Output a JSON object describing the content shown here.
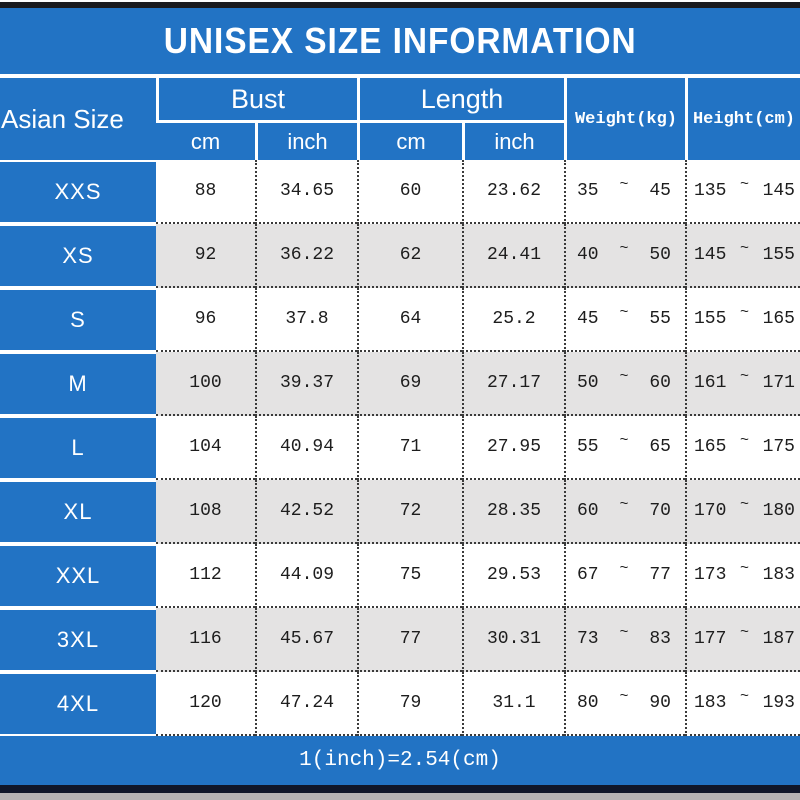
{
  "title": "UNISEX SIZE INFORMATION",
  "footer_note": "1(inch)=2.54(cm)",
  "colors": {
    "brand_blue": "#2273c4",
    "stripe_gray": "#e4e3e3",
    "top_bar_dark": "#1a1a1e",
    "bottom_bar_dark": "#10172a",
    "bottom_strip_gray": "#b5b3b4",
    "text_dark": "#1d1d1d",
    "text_light": "#ffffff"
  },
  "table": {
    "corner_header": "Asian Size",
    "tilde": "~",
    "groups": [
      {
        "label": "Bust",
        "sub": [
          "cm",
          "inch"
        ]
      },
      {
        "label": "Length",
        "sub": [
          "cm",
          "inch"
        ]
      }
    ],
    "single_headers": [
      {
        "label": "Weight(kg)"
      },
      {
        "label": "Height(cm)"
      }
    ],
    "rows": [
      {
        "size": "XXS",
        "bust_cm": "88",
        "bust_inch": "34.65",
        "length_cm": "60",
        "length_inch": "23.62",
        "weight_min": "35",
        "weight_max": "45",
        "height_min": "135",
        "height_max": "145"
      },
      {
        "size": "XS",
        "bust_cm": "92",
        "bust_inch": "36.22",
        "length_cm": "62",
        "length_inch": "24.41",
        "weight_min": "40",
        "weight_max": "50",
        "height_min": "145",
        "height_max": "155"
      },
      {
        "size": "S",
        "bust_cm": "96",
        "bust_inch": "37.8",
        "length_cm": "64",
        "length_inch": "25.2",
        "weight_min": "45",
        "weight_max": "55",
        "height_min": "155",
        "height_max": "165"
      },
      {
        "size": "M",
        "bust_cm": "100",
        "bust_inch": "39.37",
        "length_cm": "69",
        "length_inch": "27.17",
        "weight_min": "50",
        "weight_max": "60",
        "height_min": "161",
        "height_max": "171"
      },
      {
        "size": "L",
        "bust_cm": "104",
        "bust_inch": "40.94",
        "length_cm": "71",
        "length_inch": "27.95",
        "weight_min": "55",
        "weight_max": "65",
        "height_min": "165",
        "height_max": "175"
      },
      {
        "size": "XL",
        "bust_cm": "108",
        "bust_inch": "42.52",
        "length_cm": "72",
        "length_inch": "28.35",
        "weight_min": "60",
        "weight_max": "70",
        "height_min": "170",
        "height_max": "180"
      },
      {
        "size": "XXL",
        "bust_cm": "112",
        "bust_inch": "44.09",
        "length_cm": "75",
        "length_inch": "29.53",
        "weight_min": "67",
        "weight_max": "77",
        "height_min": "173",
        "height_max": "183"
      },
      {
        "size": "3XL",
        "bust_cm": "116",
        "bust_inch": "45.67",
        "length_cm": "77",
        "length_inch": "30.31",
        "weight_min": "73",
        "weight_max": "83",
        "height_min": "177",
        "height_max": "187"
      },
      {
        "size": "4XL",
        "bust_cm": "120",
        "bust_inch": "47.24",
        "length_cm": "79",
        "length_inch": "31.1",
        "weight_min": "80",
        "weight_max": "90",
        "height_min": "183",
        "height_max": "193"
      }
    ]
  },
  "chart_data": {
    "type": "table",
    "title": "UNISEX SIZE INFORMATION",
    "columns": [
      "Asian Size",
      "Bust cm",
      "Bust inch",
      "Length cm",
      "Length inch",
      "Weight(kg)",
      "Height(cm)"
    ],
    "rows": [
      [
        "XXS",
        88,
        34.65,
        60,
        23.62,
        "35~45",
        "135~145"
      ],
      [
        "XS",
        92,
        36.22,
        62,
        24.41,
        "40~50",
        "145~155"
      ],
      [
        "S",
        96,
        37.8,
        64,
        25.2,
        "45~55",
        "155~165"
      ],
      [
        "M",
        100,
        39.37,
        69,
        27.17,
        "50~60",
        "161~171"
      ],
      [
        "L",
        104,
        40.94,
        71,
        27.95,
        "55~65",
        "165~175"
      ],
      [
        "XL",
        108,
        42.52,
        72,
        28.35,
        "60~70",
        "170~180"
      ],
      [
        "XXL",
        112,
        44.09,
        75,
        29.53,
        "67~77",
        "173~183"
      ],
      [
        "3XL",
        116,
        45.67,
        77,
        30.31,
        "73~83",
        "177~187"
      ],
      [
        "4XL",
        120,
        47.24,
        79,
        31.1,
        "80~90",
        "183~193"
      ]
    ],
    "footnote": "1(inch)=2.54(cm)"
  }
}
